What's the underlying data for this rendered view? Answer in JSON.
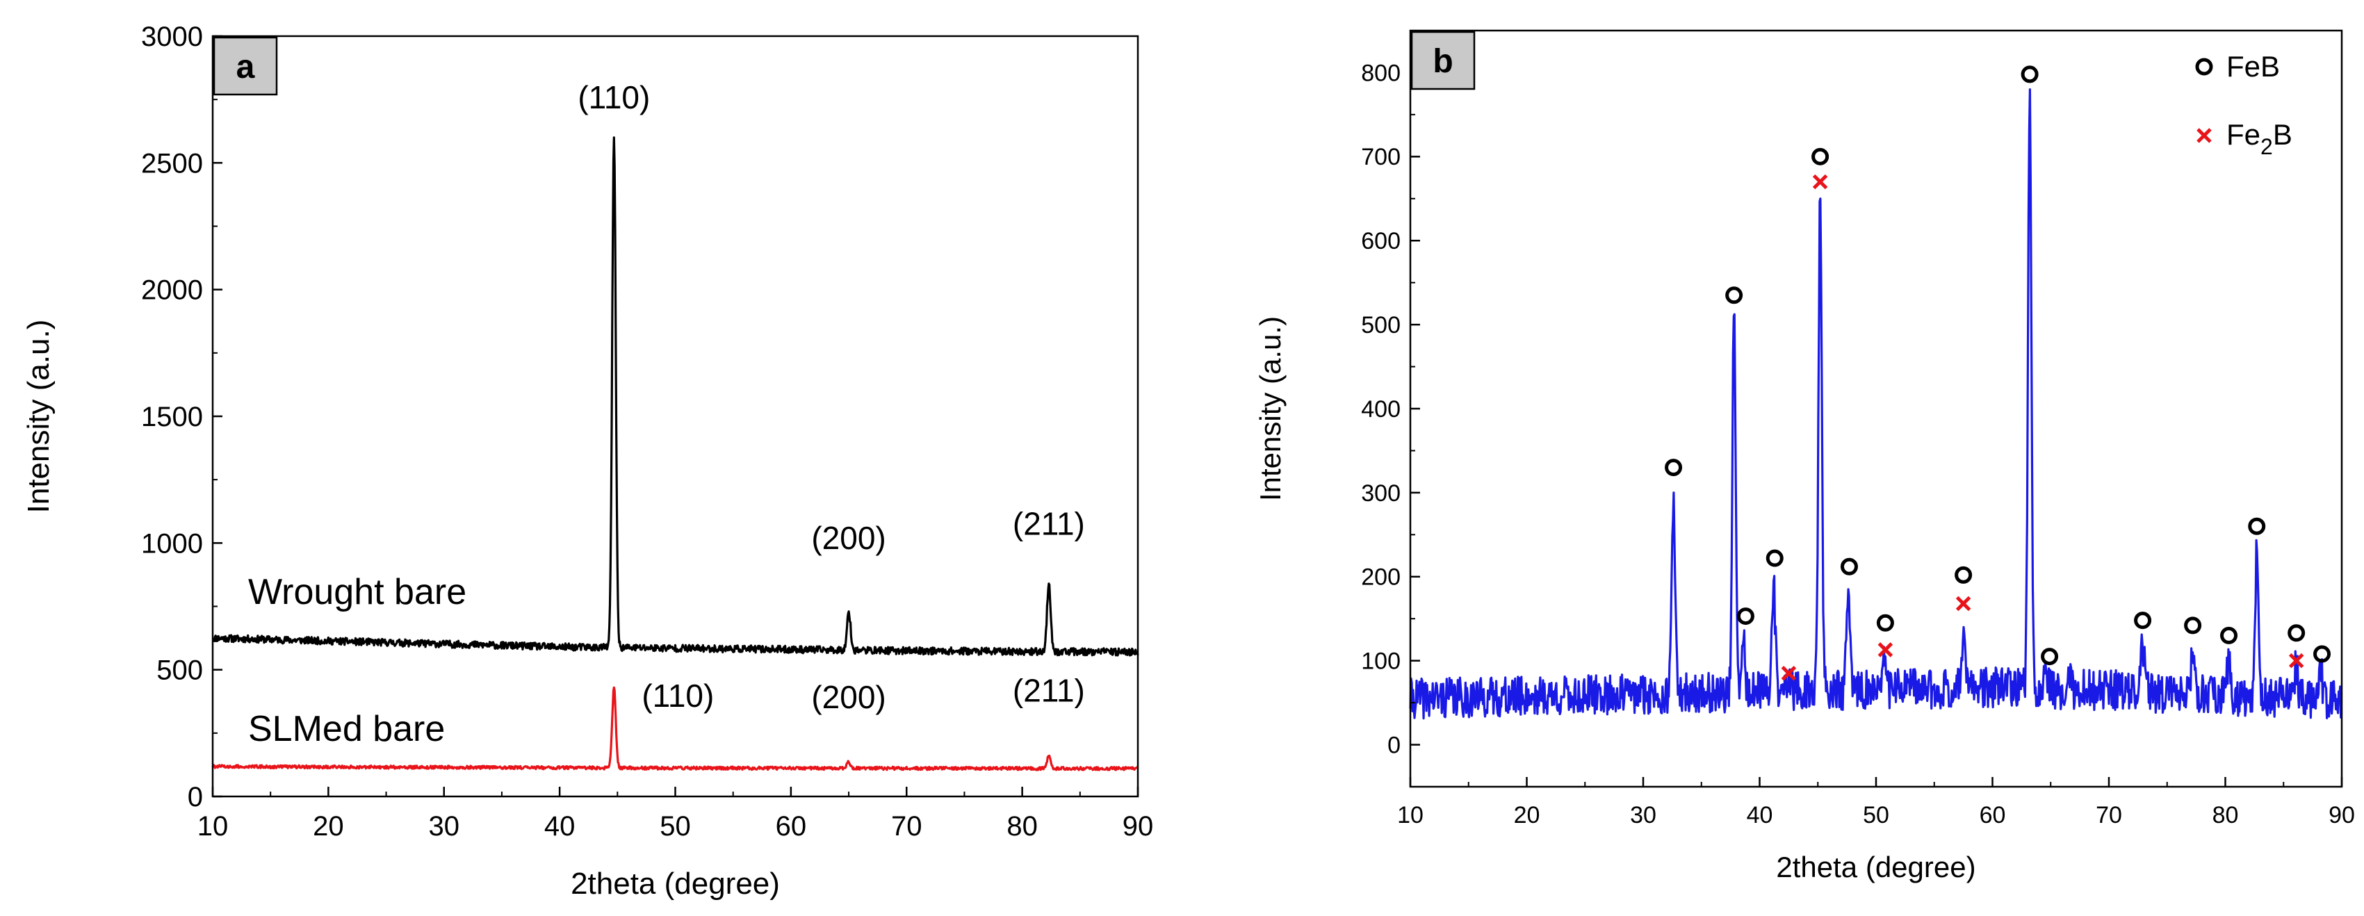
{
  "chart_data": [
    {
      "panel_label": "a",
      "type": "line",
      "xlabel": "2theta (degree)",
      "ylabel": "Intensity (a.u.)",
      "xlim": [
        10,
        90
      ],
      "ylim": [
        0,
        3000
      ],
      "xticks": [
        10,
        20,
        30,
        40,
        50,
        60,
        70,
        80,
        90
      ],
      "yticks": [
        0,
        500,
        1000,
        1500,
        2000,
        2500,
        3000
      ],
      "grid": false,
      "series": [
        {
          "name": "Wrought bare",
          "color": "#000000",
          "baseline": [
            [
              10,
              625
            ],
            [
              40,
              590
            ],
            [
              50,
              585
            ],
            [
              60,
              580
            ],
            [
              70,
              575
            ],
            [
              80,
              572
            ],
            [
              90,
              570
            ]
          ],
          "peaks": [
            {
              "x": 44.7,
              "y": 2600,
              "hkl": "(110)"
            },
            {
              "x": 65.0,
              "y": 730,
              "hkl": "(200)"
            },
            {
              "x": 82.3,
              "y": 840,
              "hkl": "(211)"
            }
          ]
        },
        {
          "name": "SLMed bare",
          "color": "#e8141a",
          "baseline": [
            [
              10,
              118
            ],
            [
              50,
              112
            ],
            [
              90,
              110
            ]
          ],
          "peaks": [
            {
              "x": 44.7,
              "y": 430,
              "hkl": "(110)"
            },
            {
              "x": 65.0,
              "y": 135,
              "hkl": "(200)"
            },
            {
              "x": 82.3,
              "y": 160,
              "hkl": "(211)"
            }
          ]
        }
      ]
    },
    {
      "panel_label": "b",
      "type": "line",
      "xlabel": "2theta (degree)",
      "ylabel": "Intensity (a.u.)",
      "xlim": [
        10,
        90
      ],
      "ylim": [
        -50,
        850
      ],
      "xticks": [
        10,
        20,
        30,
        40,
        50,
        60,
        70,
        80,
        90
      ],
      "yticks": [
        0,
        100,
        200,
        300,
        400,
        500,
        600,
        700,
        800
      ],
      "grid": false,
      "legend": {
        "position": "top-right",
        "entries": [
          {
            "marker": "o",
            "color": "#000000",
            "label": "FeB"
          },
          {
            "marker": "x",
            "color": "#e8141a",
            "label": "Fe",
            "subscript": "2",
            "suffix": "B"
          }
        ]
      },
      "series": [
        {
          "name": "",
          "color": "#1a1ae6",
          "baseline": [
            [
              10,
              55
            ],
            [
              30,
              60
            ],
            [
              60,
              68
            ],
            [
              70,
              65
            ],
            [
              80,
              58
            ],
            [
              90,
              55
            ]
          ],
          "peaks": [
            {
              "x": 32.6,
              "y": 300
            },
            {
              "x": 37.8,
              "y": 510
            },
            {
              "x": 38.6,
              "y": 125
            },
            {
              "x": 41.2,
              "y": 195
            },
            {
              "x": 42.5,
              "y": 85
            },
            {
              "x": 45.2,
              "y": 650
            },
            {
              "x": 47.6,
              "y": 185
            },
            {
              "x": 50.8,
              "y": 105
            },
            {
              "x": 57.5,
              "y": 140
            },
            {
              "x": 63.2,
              "y": 780
            },
            {
              "x": 64.6,
              "y": 90
            },
            {
              "x": 66.5,
              "y": 92
            },
            {
              "x": 72.9,
              "y": 120
            },
            {
              "x": 77.2,
              "y": 110
            },
            {
              "x": 80.3,
              "y": 100
            },
            {
              "x": 82.7,
              "y": 230
            },
            {
              "x": 86.1,
              "y": 95
            },
            {
              "x": 88.2,
              "y": 88
            }
          ]
        }
      ],
      "markers": [
        {
          "type": "o",
          "x": 32.6,
          "y": 330
        },
        {
          "type": "o",
          "x": 37.8,
          "y": 535
        },
        {
          "type": "o",
          "x": 38.8,
          "y": 153
        },
        {
          "type": "o",
          "x": 41.3,
          "y": 222
        },
        {
          "type": "x",
          "x": 42.5,
          "y": 85
        },
        {
          "type": "o",
          "x": 45.2,
          "y": 700
        },
        {
          "type": "x",
          "x": 45.2,
          "y": 670
        },
        {
          "type": "o",
          "x": 47.7,
          "y": 212
        },
        {
          "type": "o",
          "x": 50.8,
          "y": 145
        },
        {
          "type": "x",
          "x": 50.8,
          "y": 113
        },
        {
          "type": "o",
          "x": 57.5,
          "y": 202
        },
        {
          "type": "x",
          "x": 57.5,
          "y": 168
        },
        {
          "type": "o",
          "x": 63.2,
          "y": 798
        },
        {
          "type": "o",
          "x": 64.9,
          "y": 105
        },
        {
          "type": "o",
          "x": 72.9,
          "y": 148
        },
        {
          "type": "o",
          "x": 77.2,
          "y": 142
        },
        {
          "type": "o",
          "x": 80.3,
          "y": 130
        },
        {
          "type": "o",
          "x": 82.7,
          "y": 260
        },
        {
          "type": "o",
          "x": 86.1,
          "y": 133
        },
        {
          "type": "x",
          "x": 86.1,
          "y": 100
        },
        {
          "type": "o",
          "x": 88.3,
          "y": 108
        }
      ]
    }
  ]
}
